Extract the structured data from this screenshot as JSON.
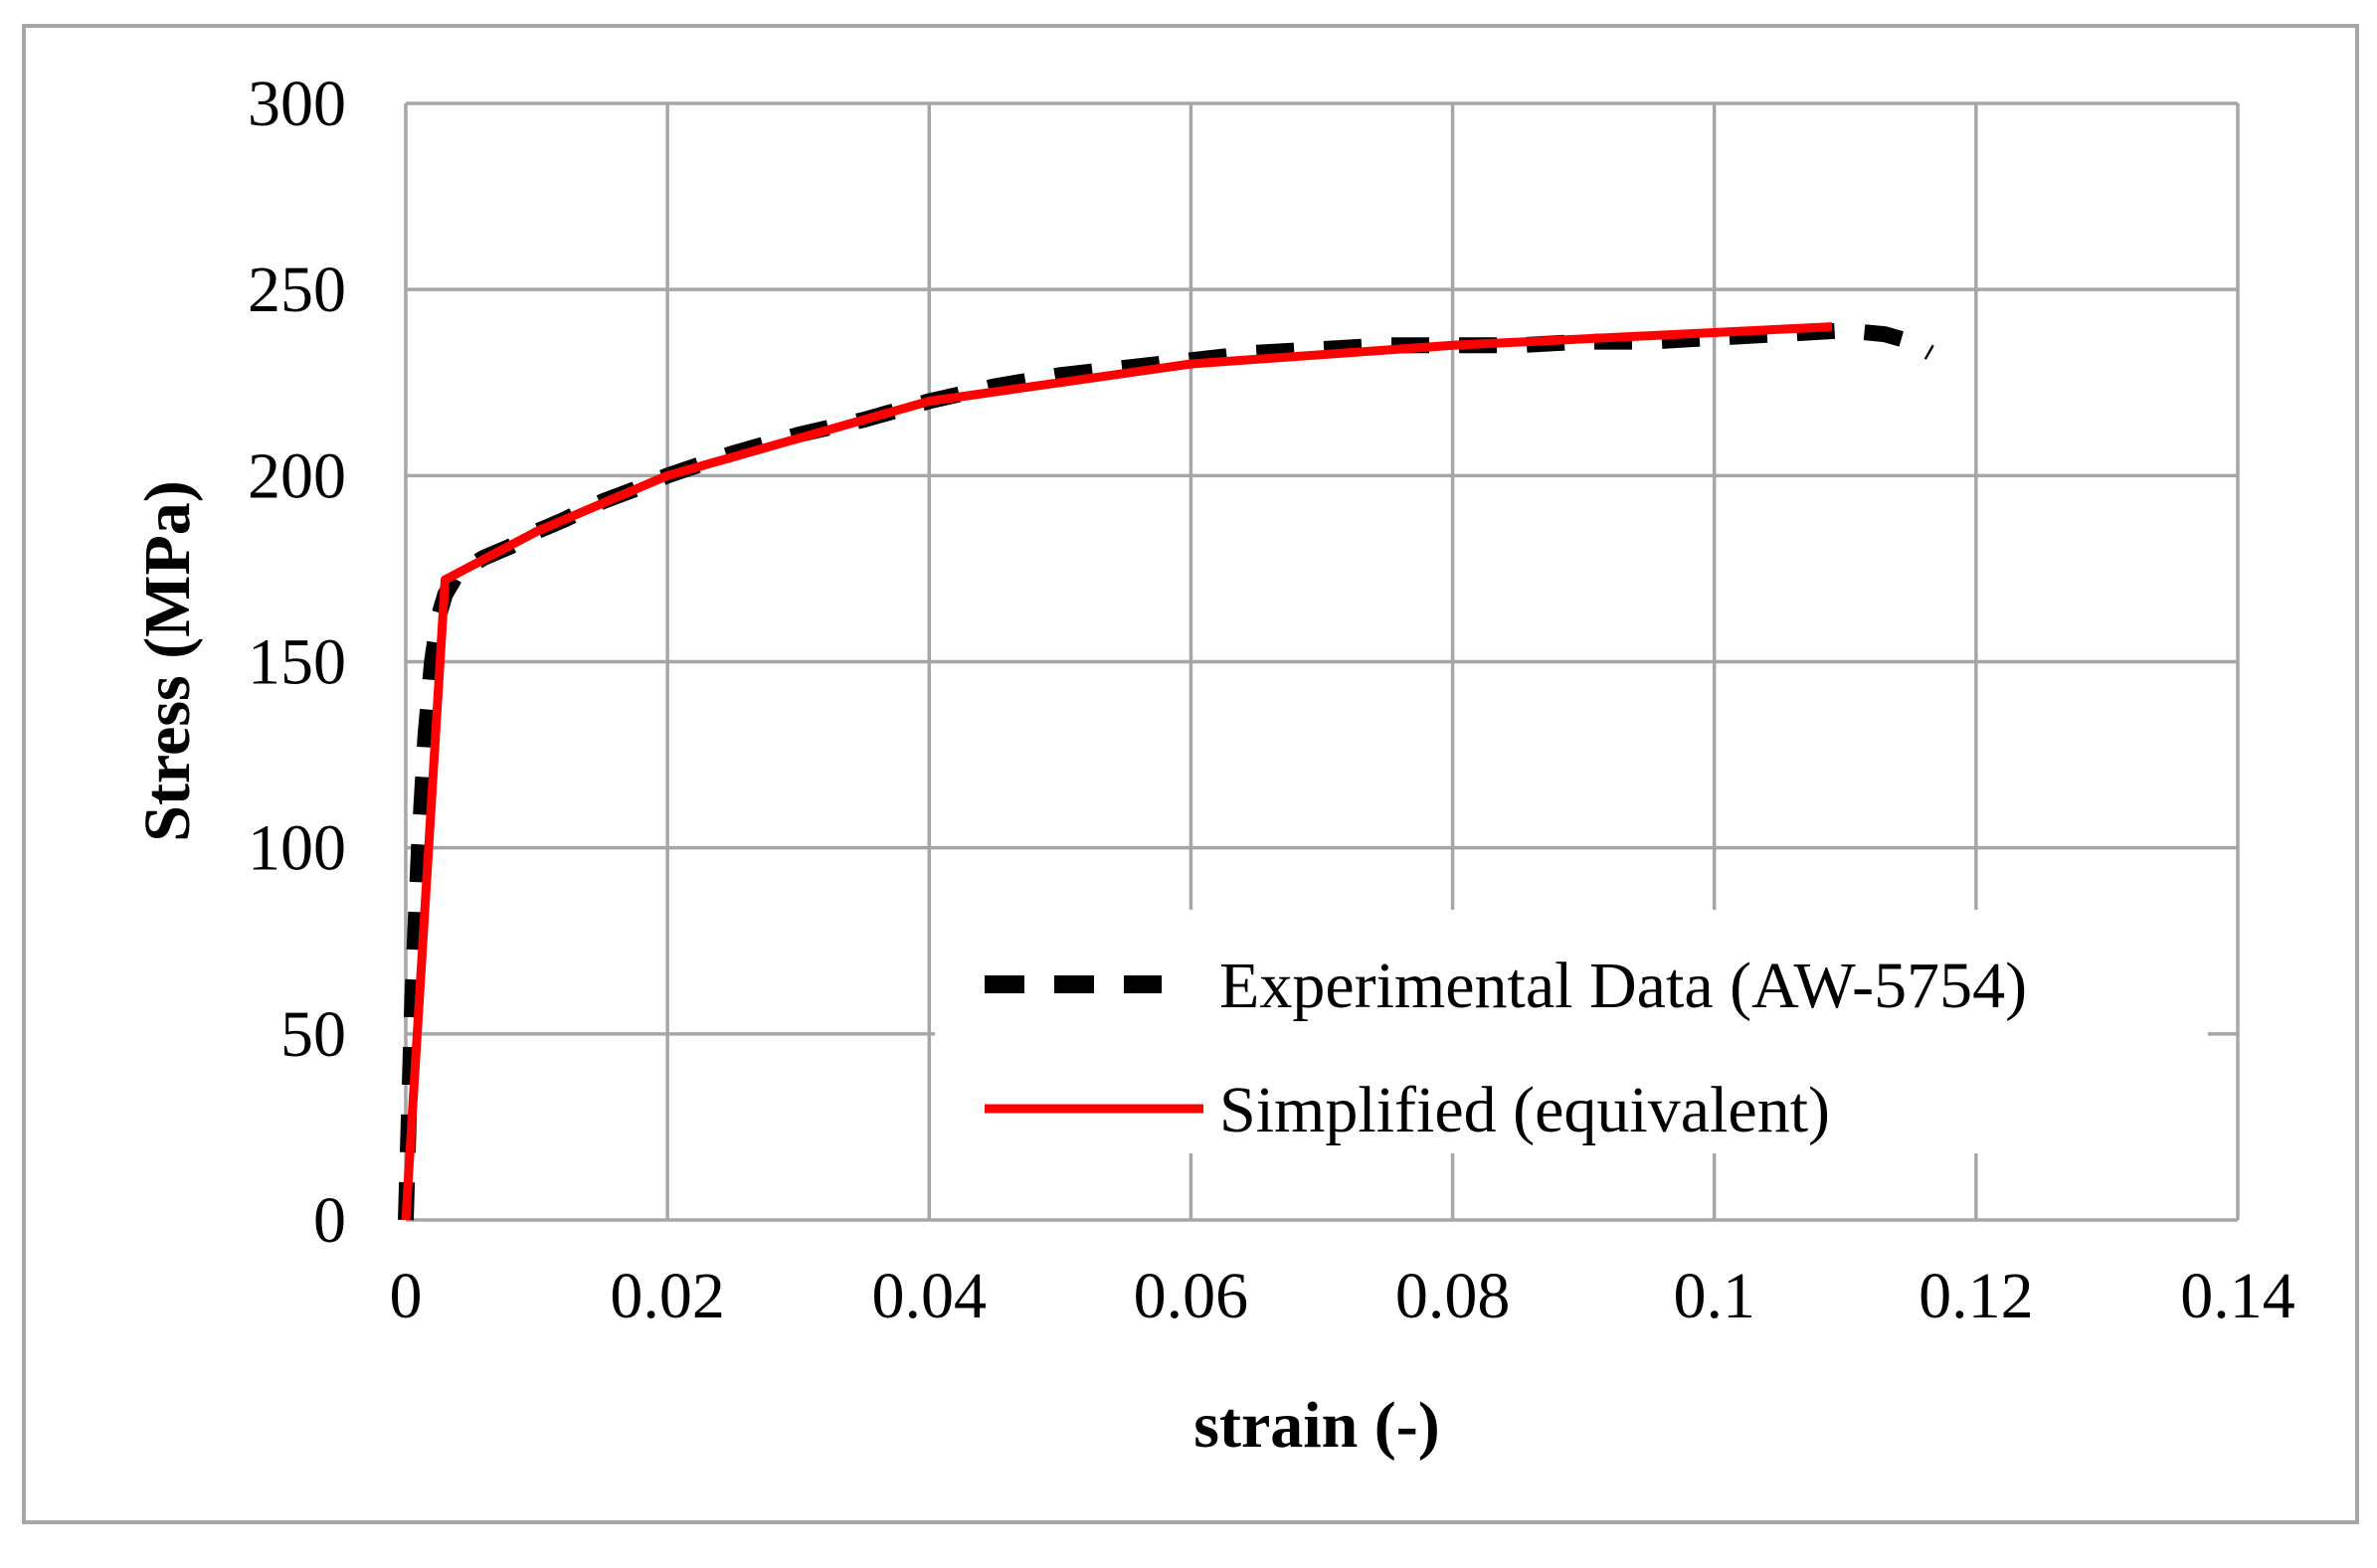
{
  "chart_data": {
    "type": "line",
    "title": "",
    "xlabel": "strain (-)",
    "ylabel": "Stress (MPa)",
    "xlim": [
      0,
      0.14
    ],
    "ylim": [
      0,
      300
    ],
    "xticks": [
      0,
      0.02,
      0.04,
      0.06,
      0.08,
      0.1,
      0.12,
      0.14
    ],
    "xtick_labels": [
      "0",
      "0.02",
      "0.04",
      "0.06",
      "0.08",
      "0.1",
      "0.12",
      "0.14"
    ],
    "yticks": [
      0,
      50,
      100,
      150,
      200,
      250,
      300
    ],
    "ytick_labels": [
      "0",
      "50",
      "100",
      "150",
      "200",
      "250",
      "300"
    ],
    "grid": true,
    "legend_position": "lower-right",
    "series": [
      {
        "name": "Experimental Data (AW-5754)",
        "style": "dashed",
        "color": "#000000",
        "x": [
          0,
          0.0005,
          0.001,
          0.0015,
          0.002,
          0.0025,
          0.003,
          0.004,
          0.006,
          0.008,
          0.01,
          0.012,
          0.015,
          0.018,
          0.02,
          0.025,
          0.03,
          0.035,
          0.04,
          0.045,
          0.05,
          0.055,
          0.06,
          0.065,
          0.07,
          0.075,
          0.08,
          0.085,
          0.09,
          0.095,
          0.1,
          0.105,
          0.11,
          0.113,
          0.115,
          0.1165
        ],
        "y": [
          0,
          60,
          100,
          130,
          150,
          162,
          168,
          174,
          178,
          181,
          185,
          188,
          193,
          197,
          200,
          206,
          211,
          215,
          220,
          224,
          227,
          229,
          231,
          233,
          234,
          235,
          235,
          235,
          236,
          236,
          237,
          238,
          239,
          238,
          236,
          233
        ]
      },
      {
        "name": "Simplified (equivalent)",
        "style": "solid",
        "color": "#ff0000",
        "x": [
          0,
          0.003,
          0.01,
          0.02,
          0.04,
          0.06,
          0.08,
          0.109
        ],
        "y": [
          0,
          172,
          185,
          200,
          220,
          230,
          235,
          240
        ]
      }
    ]
  }
}
